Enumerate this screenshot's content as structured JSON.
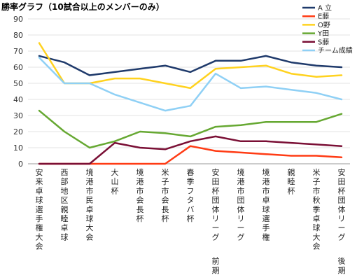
{
  "chart_data": {
    "type": "line",
    "title": "勝率グラフ（10試合以上のメンバーのみ）",
    "xlabel": "",
    "ylabel": "",
    "ylim": [
      0,
      90
    ],
    "yticks": [
      0,
      10,
      20,
      30,
      40,
      50,
      60,
      70,
      80,
      90
    ],
    "grid": "horizontal",
    "legend_position": "top-right",
    "categories": [
      "安来卓球選手権大会",
      "西部地区親睦卓球",
      "境港市民卓球大会",
      "大山杯",
      "境港市会長杯",
      "米子市会長杯",
      "春季フタバ杯",
      "安田杯団体リーグ 前期",
      "境港市団体リーグ",
      "境港市卓球選手権",
      "親睦杯",
      "米子市秋季卓球大会",
      "安田杯団体リーグ 後期"
    ],
    "series": [
      {
        "name": "A 立",
        "color": "#1f3a6b",
        "values": [
          67,
          63,
          55,
          57,
          59,
          61,
          57,
          64,
          64,
          67,
          63,
          61,
          60
        ]
      },
      {
        "name": "E藤",
        "color": "#ff3b14",
        "values": [
          0,
          0,
          0,
          0,
          0,
          0,
          11,
          8,
          7,
          6,
          5,
          5,
          4
        ]
      },
      {
        "name": "O野",
        "color": "#ffd21f",
        "values": [
          75,
          50,
          50,
          53,
          53,
          50,
          47,
          59,
          60,
          61,
          56,
          54,
          55
        ]
      },
      {
        "name": "Y田",
        "color": "#66a832",
        "values": [
          33,
          20,
          10,
          14,
          20,
          19,
          17,
          23,
          24,
          26,
          26,
          26,
          31
        ]
      },
      {
        "name": "S藤",
        "color": "#7a0f35",
        "values": [
          0,
          0,
          0,
          13,
          10,
          9,
          14,
          17,
          14,
          14,
          13,
          12,
          11
        ]
      },
      {
        "name": "チーム成績",
        "color": "#8fd0f5",
        "values": [
          66,
          50,
          50,
          43,
          38,
          33,
          36,
          56,
          47,
          48,
          46,
          44,
          40
        ]
      }
    ]
  }
}
